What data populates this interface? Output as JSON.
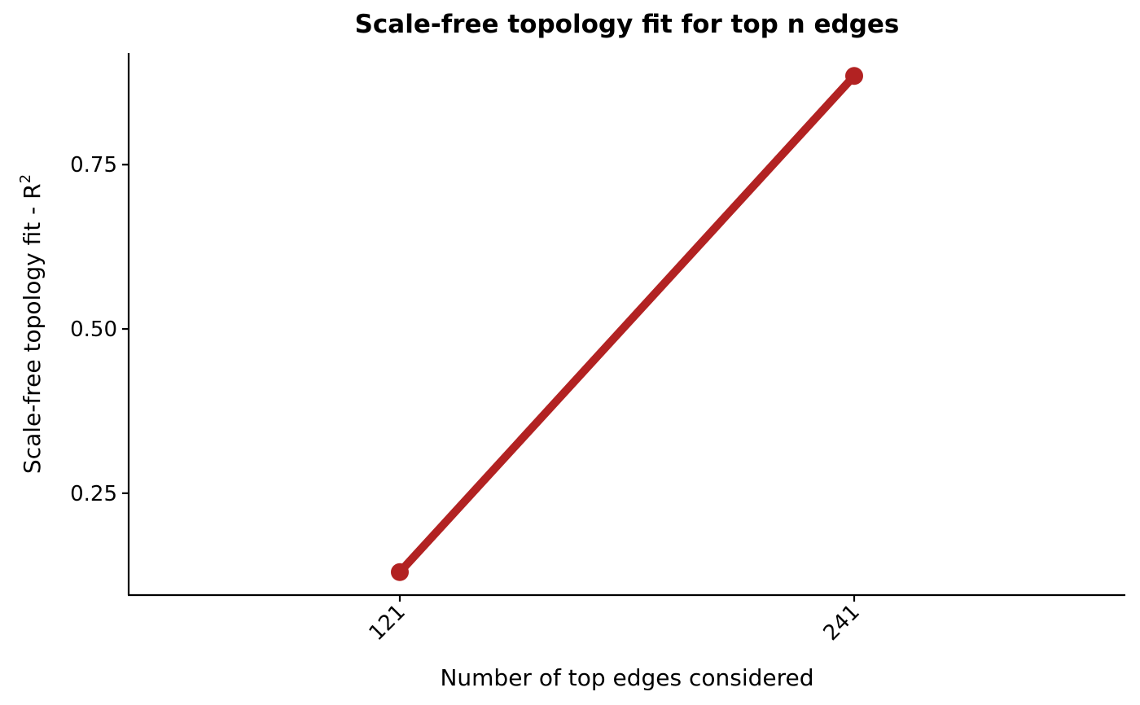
{
  "chart_data": {
    "type": "line",
    "title": "Scale-free topology fit for top n edges",
    "xlabel": "Number of top edges considered",
    "ylabel": "Scale-free topology fit - R",
    "ylabel_superscript": "2",
    "categories": [
      "121",
      "241"
    ],
    "series": [
      {
        "values": [
          0.13,
          0.885
        ]
      }
    ],
    "yticks": [
      0.25,
      0.5,
      0.75
    ],
    "ytick_labels": [
      "0.25",
      "0.50",
      "0.75"
    ],
    "ylim": [
      0.095,
      0.92
    ],
    "grid": false,
    "legend": "none",
    "series_color": "#B22222",
    "axis_color": "#000000"
  }
}
